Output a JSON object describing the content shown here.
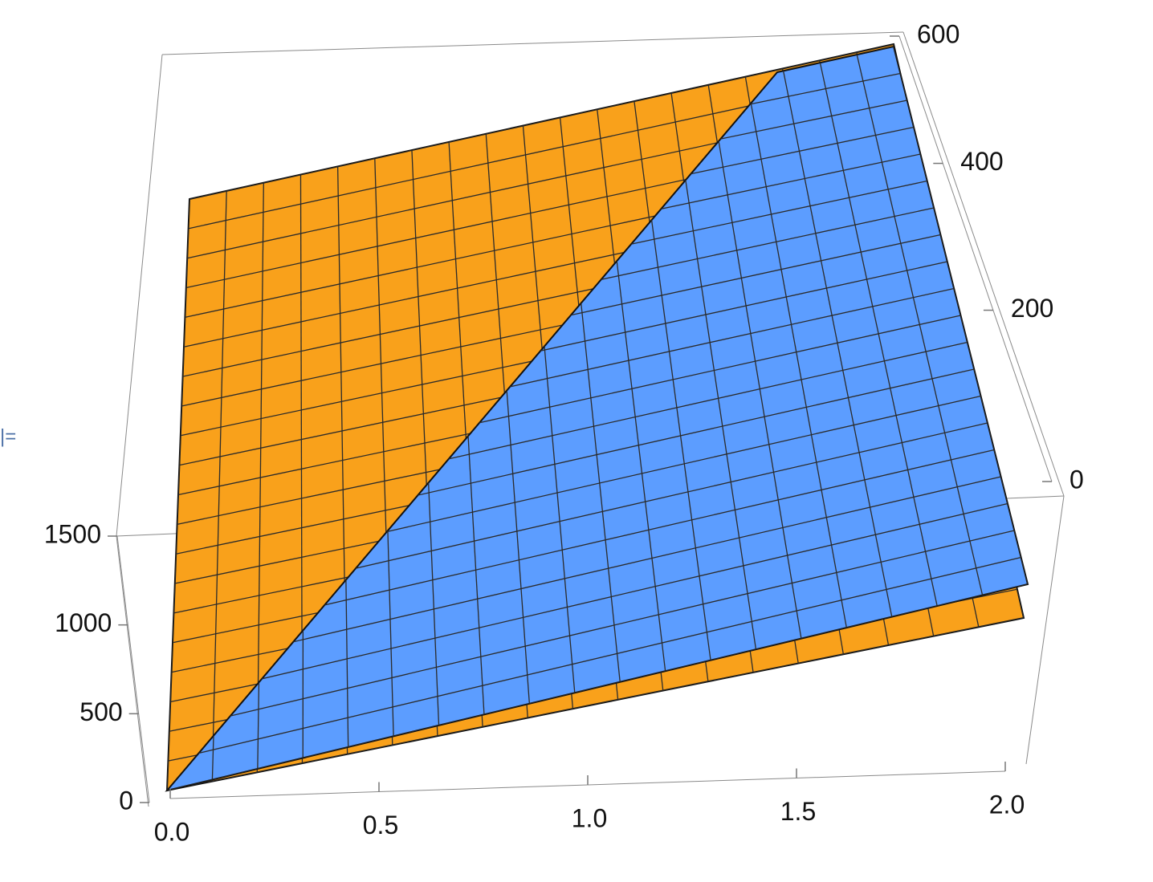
{
  "cell_label": "|=",
  "chart_data": {
    "type": "surface3d",
    "series": [
      {
        "color": "#f9a11b"
      },
      {
        "color": "#5c9dff"
      }
    ],
    "xlim": [
      0,
      2
    ],
    "xticks": [
      {
        "value": 0,
        "label": "0.0"
      },
      0.5,
      {
        "value": 1,
        "label": "1.0"
      },
      1.5,
      {
        "value": 2,
        "label": "2.0"
      }
    ],
    "ylim": [
      0,
      1500
    ],
    "yticks": [
      0,
      500,
      1000,
      1500
    ],
    "zlim": [
      0,
      600
    ],
    "zticks": [
      0,
      200,
      400,
      600
    ],
    "mesh": true,
    "boxed": true
  }
}
